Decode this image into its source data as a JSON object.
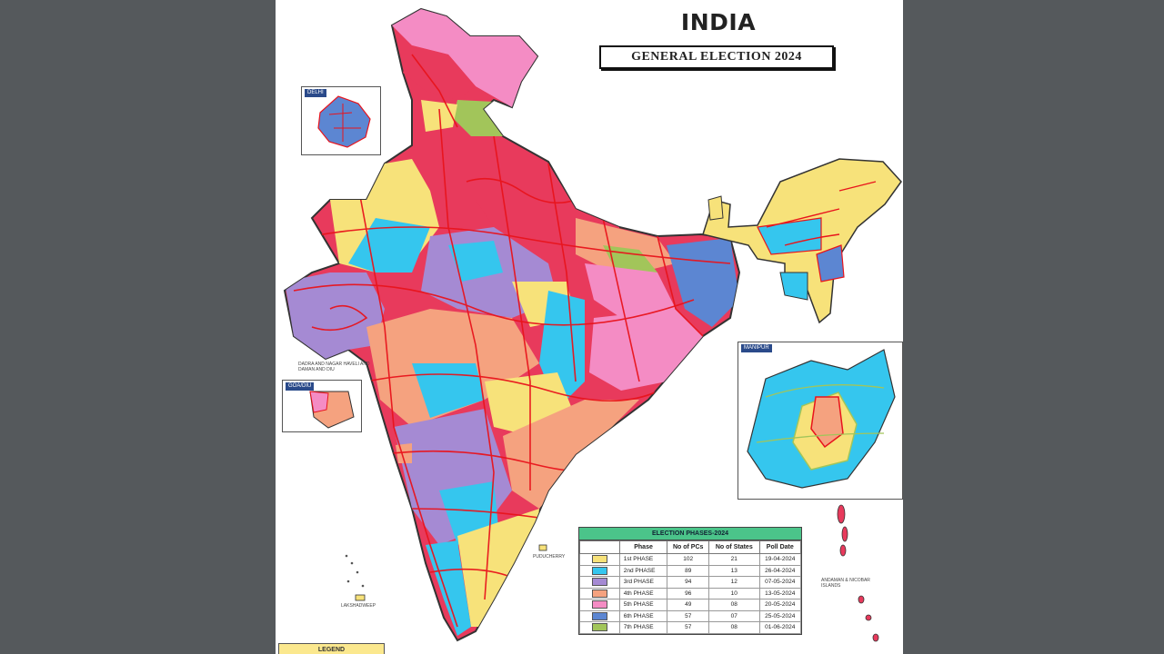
{
  "title": "INDIA",
  "subtitle": "GENERAL ELECTION 2024",
  "inset_delhi": {
    "label": "DELHI"
  },
  "inset_goa": {
    "label": "GOA/DIU"
  },
  "inset_manipur": {
    "label": "MANIPUR"
  },
  "map_labels": {
    "lakshadweep": "LAKSHADWEEP",
    "puducherry": "PUDUCHERRY",
    "andaman": "ANDAMAN & NICOBAR ISLANDS",
    "dnh": "DADRA AND NAGAR HAVELI AND DAMAN AND DIU"
  },
  "colors": {
    "phase1": "#f7e27a",
    "phase2": "#35c6ee",
    "phase3": "#a58ad3",
    "phase4": "#f5a27f",
    "phase5": "#f48cc4",
    "phase6": "#5c86d2",
    "phase7": "#a2c55a",
    "boundary": "#e8141c",
    "state_border": "#333333",
    "table_header": "#4bc48a"
  },
  "legend": {
    "title": "ELECTION PHASES-2024",
    "headers": [
      "Phase",
      "No of PCs",
      "No of States",
      "Poll Date"
    ],
    "rows": [
      {
        "phase": "1st PHASE",
        "pcs": "102",
        "states": "21",
        "date": "19-04-2024",
        "color": "#f7e27a"
      },
      {
        "phase": "2nd PHASE",
        "pcs": "89",
        "states": "13",
        "date": "26-04-2024",
        "color": "#35c6ee"
      },
      {
        "phase": "3rd PHASE",
        "pcs": "94",
        "states": "12",
        "date": "07-05-2024",
        "color": "#a58ad3"
      },
      {
        "phase": "4th PHASE",
        "pcs": "96",
        "states": "10",
        "date": "13-05-2024",
        "color": "#f5a27f"
      },
      {
        "phase": "5th PHASE",
        "pcs": "49",
        "states": "08",
        "date": "20-05-2024",
        "color": "#f48cc4"
      },
      {
        "phase": "6th PHASE",
        "pcs": "57",
        "states": "07",
        "date": "25-05-2024",
        "color": "#5c86d2"
      },
      {
        "phase": "7th PHASE",
        "pcs": "57",
        "states": "08",
        "date": "01-06-2024",
        "color": "#a2c55a"
      }
    ]
  },
  "legend_footer": "LEGEND"
}
